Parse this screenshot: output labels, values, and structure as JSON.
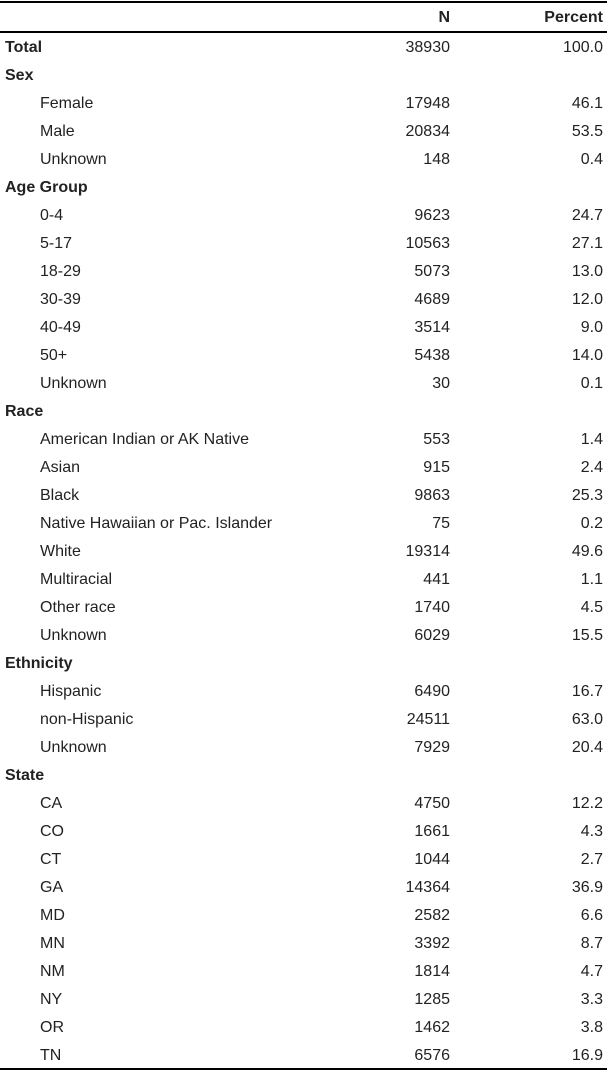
{
  "table": {
    "header": {
      "n": "N",
      "percent": "Percent"
    },
    "rows": [
      {
        "label": "Total",
        "n": "38930",
        "pct": "100.0",
        "kind": "bold"
      },
      {
        "label": "Sex",
        "n": "",
        "pct": "",
        "kind": "bold"
      },
      {
        "label": "Female",
        "n": "17948",
        "pct": "46.1",
        "kind": "sub"
      },
      {
        "label": "Male",
        "n": "20834",
        "pct": "53.5",
        "kind": "sub"
      },
      {
        "label": "Unknown",
        "n": "148",
        "pct": "0.4",
        "kind": "sub"
      },
      {
        "label": "Age Group",
        "n": "",
        "pct": "",
        "kind": "bold"
      },
      {
        "label": "0-4",
        "n": "9623",
        "pct": "24.7",
        "kind": "sub"
      },
      {
        "label": "5-17",
        "n": "10563",
        "pct": "27.1",
        "kind": "sub"
      },
      {
        "label": "18-29",
        "n": "5073",
        "pct": "13.0",
        "kind": "sub"
      },
      {
        "label": "30-39",
        "n": "4689",
        "pct": "12.0",
        "kind": "sub"
      },
      {
        "label": "40-49",
        "n": "3514",
        "pct": "9.0",
        "kind": "sub"
      },
      {
        "label": "50+",
        "n": "5438",
        "pct": "14.0",
        "kind": "sub"
      },
      {
        "label": "Unknown",
        "n": "30",
        "pct": "0.1",
        "kind": "sub"
      },
      {
        "label": "Race",
        "n": "",
        "pct": "",
        "kind": "bold"
      },
      {
        "label": "American Indian or AK Native",
        "n": "553",
        "pct": "1.4",
        "kind": "sub"
      },
      {
        "label": "Asian",
        "n": "915",
        "pct": "2.4",
        "kind": "sub"
      },
      {
        "label": "Black",
        "n": "9863",
        "pct": "25.3",
        "kind": "sub"
      },
      {
        "label": "Native Hawaiian or Pac. Islander",
        "n": "75",
        "pct": "0.2",
        "kind": "sub"
      },
      {
        "label": "White",
        "n": "19314",
        "pct": "49.6",
        "kind": "sub"
      },
      {
        "label": "Multiracial",
        "n": "441",
        "pct": "1.1",
        "kind": "sub"
      },
      {
        "label": "Other race",
        "n": "1740",
        "pct": "4.5",
        "kind": "sub"
      },
      {
        "label": "Unknown",
        "n": "6029",
        "pct": "15.5",
        "kind": "sub"
      },
      {
        "label": "Ethnicity",
        "n": "",
        "pct": "",
        "kind": "bold"
      },
      {
        "label": "Hispanic",
        "n": "6490",
        "pct": "16.7",
        "kind": "sub"
      },
      {
        "label": "non-Hispanic",
        "n": "24511",
        "pct": "63.0",
        "kind": "sub"
      },
      {
        "label": "Unknown",
        "n": "7929",
        "pct": "20.4",
        "kind": "sub"
      },
      {
        "label": "State",
        "n": "",
        "pct": "",
        "kind": "bold"
      },
      {
        "label": "CA",
        "n": "4750",
        "pct": "12.2",
        "kind": "sub"
      },
      {
        "label": "CO",
        "n": "1661",
        "pct": "4.3",
        "kind": "sub"
      },
      {
        "label": "CT",
        "n": "1044",
        "pct": "2.7",
        "kind": "sub"
      },
      {
        "label": "GA",
        "n": "14364",
        "pct": "36.9",
        "kind": "sub"
      },
      {
        "label": "MD",
        "n": "2582",
        "pct": "6.6",
        "kind": "sub"
      },
      {
        "label": "MN",
        "n": "3392",
        "pct": "8.7",
        "kind": "sub"
      },
      {
        "label": "NM",
        "n": "1814",
        "pct": "4.7",
        "kind": "sub"
      },
      {
        "label": "NY",
        "n": "1285",
        "pct": "3.3",
        "kind": "sub"
      },
      {
        "label": "OR",
        "n": "1462",
        "pct": "3.8",
        "kind": "sub"
      },
      {
        "label": "TN",
        "n": "6576",
        "pct": "16.9",
        "kind": "sub"
      }
    ]
  }
}
